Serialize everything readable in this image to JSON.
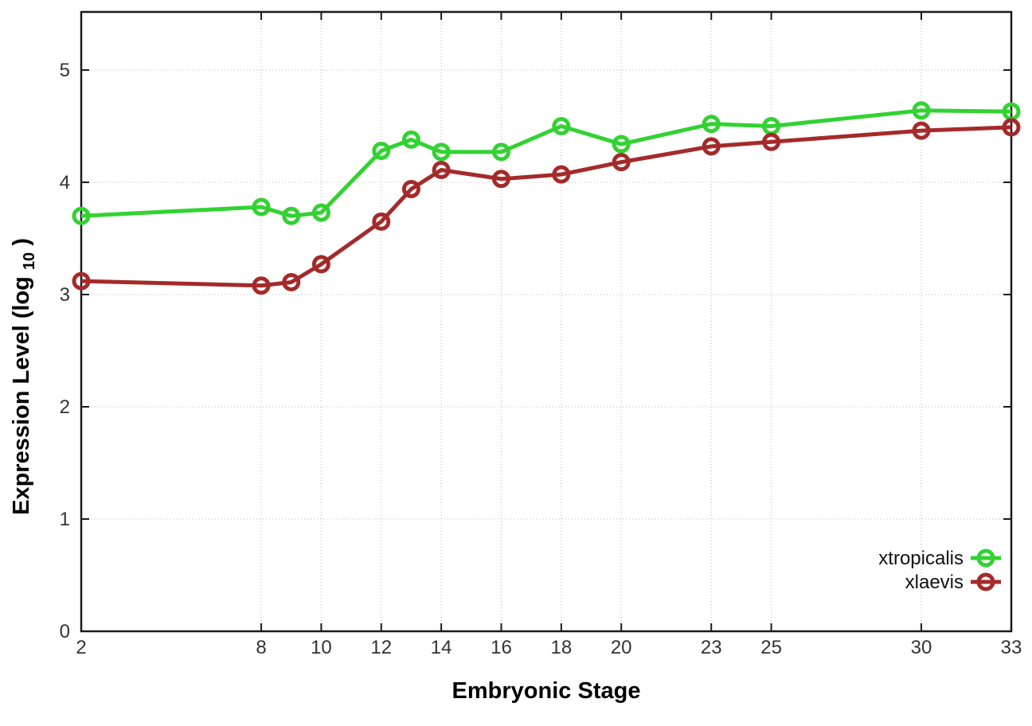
{
  "chart_data": {
    "type": "line",
    "title": "",
    "xlabel": "Embryonic Stage",
    "ylabel": {
      "main": "Expression Level (log",
      "sub": "10",
      "end": ")"
    },
    "x": [
      2,
      8,
      9,
      10,
      12,
      13,
      14,
      16,
      18,
      20,
      23,
      25,
      30,
      33
    ],
    "series": [
      {
        "name": "xtropicalis",
        "color": "#32d232",
        "values": [
          3.7,
          3.78,
          3.7,
          3.73,
          4.28,
          4.38,
          4.27,
          4.27,
          4.5,
          4.34,
          4.52,
          4.5,
          4.64,
          4.63
        ]
      },
      {
        "name": "xlaevis",
        "color": "#a52a2a",
        "values": [
          3.12,
          3.08,
          3.11,
          3.27,
          3.65,
          3.94,
          4.11,
          4.03,
          4.07,
          4.18,
          4.32,
          4.36,
          4.46,
          4.49
        ]
      }
    ],
    "xtick_labels": [
      "2",
      "8",
      "10",
      "12",
      "14",
      "16",
      "18",
      "20",
      "23",
      "25",
      "30",
      "33"
    ],
    "xtick_values": [
      2,
      8,
      10,
      12,
      14,
      16,
      18,
      20,
      23,
      25,
      30,
      33
    ],
    "ytick_labels": [
      "0",
      "1",
      "2",
      "3",
      "4",
      "5"
    ],
    "ytick_values": [
      0,
      1,
      2,
      3,
      4,
      5
    ],
    "x_range": [
      2,
      33
    ],
    "y_range": [
      0,
      5.52
    ],
    "grid": true,
    "grid_style": "dotted",
    "legend_position": "inside-bottom-right",
    "background_color": "#ffffff",
    "border_color": "#1a1a1a",
    "grid_color": "#b8b8b8",
    "tick_label_color": "#333333",
    "marker": "open-circle"
  }
}
